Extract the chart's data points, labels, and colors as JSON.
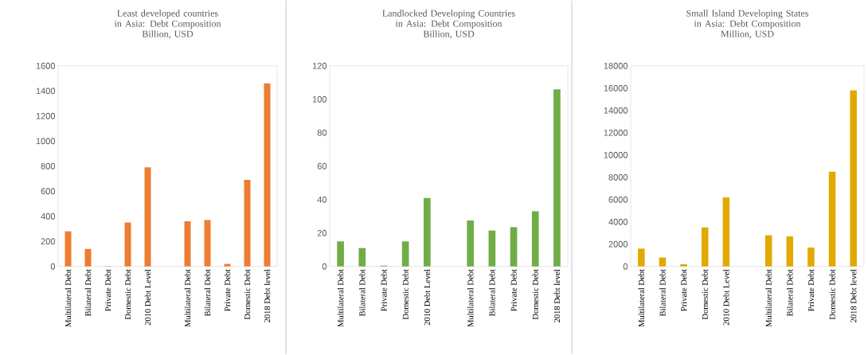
{
  "chart_data": [
    {
      "type": "bar",
      "title": "Least developed countries in Asia: Debt Composition",
      "subtitle": "Billion, USD",
      "categories": [
        "Multilateral Debt",
        "Bilateral Debt",
        "Private Debt",
        "Domestic Debt",
        "2010 Debt Level",
        null,
        "Multilateral Debt",
        "Bilateral Debt",
        "Private Debt",
        "Domestic Debt",
        "2018 Debt level"
      ],
      "values": [
        280,
        140,
        3,
        350,
        790,
        null,
        360,
        370,
        20,
        690,
        1460
      ],
      "color": "#ed7d31",
      "ylim": [
        0,
        1600
      ],
      "yticks": [
        0,
        200,
        400,
        600,
        800,
        1000,
        1200,
        1400,
        1600
      ]
    },
    {
      "type": "bar",
      "title": "Landlocked Developing Countries in Asia: Debt Composition",
      "subtitle": "Billion, USD",
      "categories": [
        "Multilateral Debt",
        "Bilateral Debt",
        "Private Debt",
        "Domestic Debt",
        "2010 Debt Level",
        null,
        "Multilateral Debt",
        "Bilateral Debt",
        "Private Debt",
        "Domestic Debt",
        "2018 Debt level"
      ],
      "values": [
        15,
        11,
        0.5,
        15,
        41,
        null,
        27.5,
        21.5,
        23.5,
        33,
        106
      ],
      "color": "#70ad47",
      "ylim": [
        0,
        120
      ],
      "yticks": [
        0,
        20,
        40,
        60,
        80,
        100,
        120
      ]
    },
    {
      "type": "bar",
      "title": "Small Island Developing States in Asia: Debt Composition",
      "subtitle": "Million, USD",
      "categories": [
        "Multilateral Debt",
        "Bilateral Debt",
        "Private Debt",
        "Domestic Debt",
        "2010 Debt Level",
        null,
        "Multilateral Debt",
        "Bilateral Debt",
        "Private Debt",
        "Domestic Debt",
        "2018 Debt level"
      ],
      "values": [
        1600,
        800,
        200,
        3500,
        6200,
        null,
        2800,
        2700,
        1700,
        8500,
        15800
      ],
      "color": "#e2a900",
      "ylim": [
        0,
        18000
      ],
      "yticks": [
        0,
        2000,
        4000,
        6000,
        8000,
        10000,
        12000,
        14000,
        16000,
        18000
      ]
    }
  ]
}
